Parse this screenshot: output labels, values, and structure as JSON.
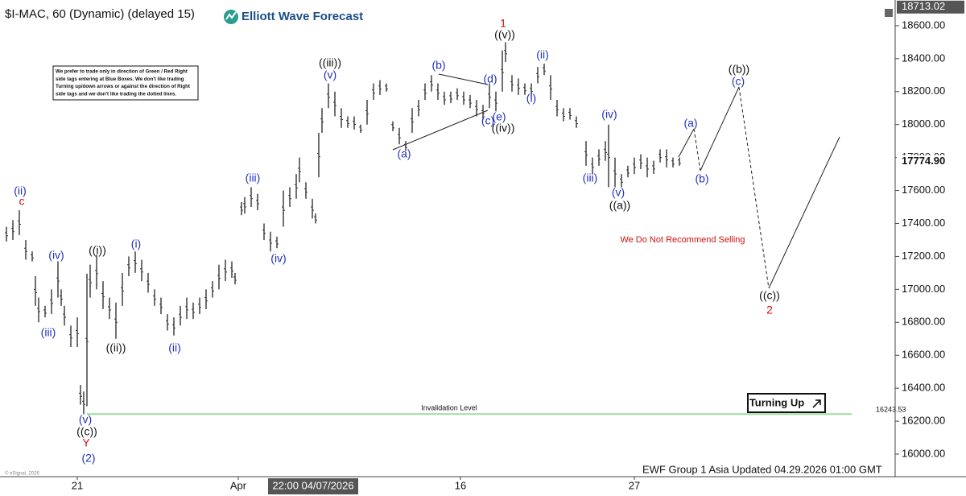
{
  "chart_data": {
    "type": "range-bar",
    "title": "$I-MAC, 60 (Dynamic) (delayed 15)",
    "brand": "Elliott Wave Forecast",
    "color": "#333333",
    "x": [
      2,
      4,
      6,
      8,
      10,
      11,
      12,
      14,
      16,
      18,
      19,
      20,
      22,
      24,
      25,
      26,
      27,
      28,
      30,
      32,
      34,
      36,
      38,
      40,
      42,
      44,
      46,
      48,
      50,
      52,
      54,
      56,
      58,
      60,
      62,
      64,
      66,
      68,
      70,
      72,
      73,
      75,
      76,
      78,
      80,
      82,
      84,
      86,
      88,
      90,
      92,
      93,
      95,
      97,
      98,
      99,
      100,
      102,
      104,
      106,
      108,
      110,
      112,
      114,
      116,
      118,
      120,
      122,
      124,
      126,
      128,
      130,
      132,
      134,
      136,
      138,
      140,
      142,
      144,
      146,
      148,
      150,
      152,
      154,
      156,
      157,
      159,
      161,
      163,
      165,
      167,
      169,
      171,
      173,
      175,
      177,
      179,
      182,
      184,
      186,
      188,
      189,
      191,
      193,
      195,
      197,
      199,
      201,
      203,
      205,
      207,
      209,
      211
    ],
    "high": [
      17380,
      17420,
      17480,
      17300,
      17230,
      17080,
      16950,
      16900,
      17000,
      17170,
      17000,
      16900,
      16780,
      16830,
      16420,
      16380,
      17095,
      17150,
      17210,
      17050,
      16950,
      16920,
      17100,
      17200,
      17230,
      17180,
      17100,
      17000,
      16950,
      16850,
      16830,
      16900,
      16950,
      16920,
      16950,
      17000,
      17050,
      17150,
      17180,
      17170,
      17100,
      17530,
      17560,
      17620,
      17580,
      17400,
      17350,
      17320,
      17600,
      17620,
      17700,
      17800,
      17650,
      17550,
      17460,
      17950,
      18100,
      18250,
      18200,
      18100,
      18050,
      18050,
      18000,
      18150,
      18250,
      18270,
      18250,
      18020,
      17980,
      17900,
      18100,
      18150,
      18250,
      18300,
      18250,
      18200,
      18200,
      18220,
      18200,
      18180,
      18150,
      18120,
      18250,
      18200,
      18450,
      18500,
      18300,
      18280,
      18250,
      18250,
      18350,
      18370,
      18300,
      18150,
      18100,
      18100,
      18050,
      17900,
      17800,
      17850,
      17900,
      18000,
      17800,
      17700,
      17750,
      17800,
      17820,
      17800,
      17780,
      17850,
      17850,
      17800,
      17800
    ],
    "low": [
      17290,
      17300,
      17330,
      17180,
      17170,
      16900,
      16800,
      16830,
      16850,
      16950,
      16900,
      16780,
      16650,
      16650,
      16300,
      16243,
      16290,
      16950,
      17000,
      16880,
      16820,
      16700,
      16900,
      17080,
      17100,
      17050,
      16980,
      16900,
      16850,
      16750,
      16720,
      16780,
      16820,
      16820,
      16850,
      16880,
      16950,
      17000,
      17050,
      17070,
      17030,
      17450,
      17460,
      17500,
      17480,
      17300,
      17230,
      17250,
      17380,
      17500,
      17550,
      17650,
      17550,
      17430,
      17400,
      17680,
      17950,
      18100,
      18050,
      17980,
      17980,
      17970,
      17950,
      18000,
      18150,
      18180,
      18200,
      17960,
      17880,
      17840,
      17950,
      18050,
      18150,
      18200,
      18150,
      18120,
      18130,
      18150,
      18120,
      18100,
      18050,
      18030,
      18100,
      18080,
      18200,
      18380,
      18200,
      18180,
      18180,
      18170,
      18250,
      18300,
      18150,
      18050,
      18020,
      18030,
      17980,
      17750,
      17700,
      17750,
      17780,
      17620,
      17620,
      17620,
      17680,
      17700,
      17730,
      17680,
      17700,
      17770,
      17740,
      17740,
      17750
    ],
    "xlim": [
      0,
      278
    ],
    "xticks": [
      {
        "value": 24,
        "label": "21"
      },
      {
        "value": 74,
        "label": "Apr"
      },
      {
        "value": 143,
        "label": "16"
      },
      {
        "value": 197,
        "label": "27"
      }
    ],
    "cursor_label": "22:00 04/07/2026",
    "ylim": [
      15873,
      18756
    ],
    "yticks": [
      {
        "value": 16000,
        "label": "16000.00"
      },
      {
        "value": 16200,
        "label": "16200.00"
      },
      {
        "value": 16400,
        "label": "16400.00"
      },
      {
        "value": 16600,
        "label": "16600.00"
      },
      {
        "value": 16800,
        "label": "16800.00"
      },
      {
        "value": 17000,
        "label": "17000.00"
      },
      {
        "value": 17200,
        "label": "17200.00"
      },
      {
        "value": 17400,
        "label": "17400.00"
      },
      {
        "value": 17600,
        "label": "17600.00"
      },
      {
        "value": 17800,
        "label": "17800.00"
      },
      {
        "value": 18000,
        "label": "18000.00"
      },
      {
        "value": 18200,
        "label": "18200.00"
      },
      {
        "value": 18400,
        "label": "18400.00"
      },
      {
        "value": 18600,
        "label": "18600.00"
      }
    ],
    "price_markers": [
      {
        "value": 18713.02,
        "label": "18713.02"
      },
      {
        "value": 17774.9,
        "label": "17774.90"
      }
    ],
    "invalidation": {
      "value": 16243.53,
      "label": "16243.53",
      "text": "Invalidation Level",
      "color": "#7ddc7d"
    },
    "note_lines": [
      "We prefer to trade only in direction of Green / Red Right",
      "side tags entering at Blue Boxes. We don't like trading",
      "Turning up/down arrows or against the direction of Right",
      "side tags and we don't like trading the dotted lines."
    ],
    "turning_label": "Turning Up",
    "footer": "EWF Group 1 Asia Updated 04.29.2026 01:00 GMT",
    "copyright": "© eSignal, 2026",
    "annotations": [
      {
        "text": "(ii)",
        "color": "#1f2fbf"
      },
      {
        "text": "c",
        "color": "#d01010"
      },
      {
        "text": "(iv)",
        "color": "#1f2fbf"
      },
      {
        "text": "(iii)",
        "color": "#1f2fbf"
      },
      {
        "text": "((i))",
        "color": "#111111"
      },
      {
        "text": "((ii))",
        "color": "#111111"
      },
      {
        "text": "(i)",
        "color": "#1f2fbf"
      },
      {
        "text": "(ii)",
        "color": "#1f2fbf"
      },
      {
        "text": "(v)",
        "color": "#1f2fbf"
      },
      {
        "text": "((c))",
        "color": "#111111"
      },
      {
        "text": "Y",
        "color": "#d01010"
      },
      {
        "text": "(2)",
        "color": "#1f2fbf"
      },
      {
        "text": "(iii)",
        "color": "#1f2fbf"
      },
      {
        "text": "(iv)",
        "color": "#1f2fbf"
      },
      {
        "text": "((iii))",
        "color": "#111111"
      },
      {
        "text": "(v)",
        "color": "#1f2fbf"
      },
      {
        "text": "(a)",
        "color": "#1f2fbf"
      },
      {
        "text": "(b)",
        "color": "#1f2fbf"
      },
      {
        "text": "(d)",
        "color": "#1f2fbf"
      },
      {
        "text": "(c)",
        "color": "#1f2fbf"
      },
      {
        "text": "(e)",
        "color": "#1f2fbf"
      },
      {
        "text": "((iv))",
        "color": "#111111"
      },
      {
        "text": "1",
        "color": "#d01010"
      },
      {
        "text": "((v))",
        "color": "#111111"
      },
      {
        "text": "(ii)",
        "color": "#1f2fbf"
      },
      {
        "text": "(i)",
        "color": "#1f2fbf"
      },
      {
        "text": "(iv)",
        "color": "#1f2fbf"
      },
      {
        "text": "(iii)",
        "color": "#1f2fbf"
      },
      {
        "text": "(v)",
        "color": "#1f2fbf"
      },
      {
        "text": "((a))",
        "color": "#111111"
      },
      {
        "text": "(a)",
        "color": "#1f2fbf"
      },
      {
        "text": "(b)",
        "color": "#1f2fbf"
      },
      {
        "text": "((b))",
        "color": "#111111"
      },
      {
        "text": "(c)",
        "color": "#1f2fbf"
      },
      {
        "text": "((c))",
        "color": "#111111"
      },
      {
        "text": "2",
        "color": "#d01010"
      },
      {
        "text": "We Do Not Recommend Selling",
        "color": "#d01010"
      }
    ]
  }
}
